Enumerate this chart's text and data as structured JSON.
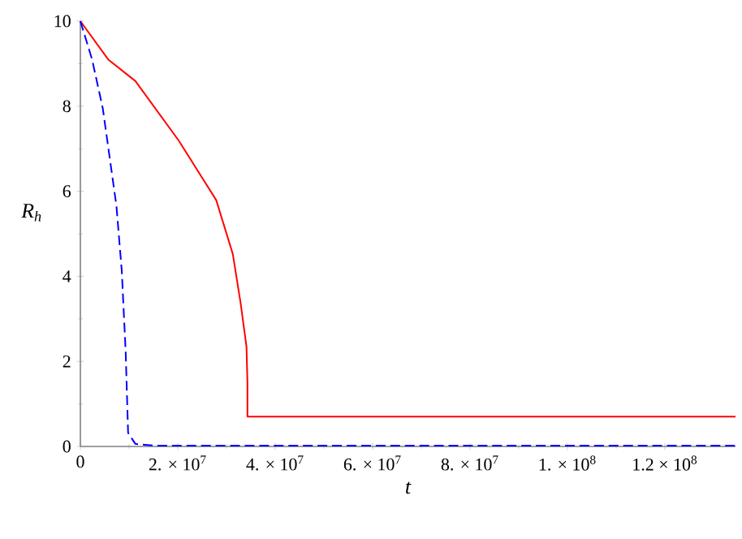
{
  "chart_data": {
    "type": "line",
    "xlabel": "t",
    "ylabel": "R$_{h}$",
    "xlim": [
      0,
      134500000
    ],
    "ylim": [
      0,
      10
    ],
    "xticks": [
      0,
      {
        "value": 20000000,
        "label": "2. × 10$^{7}$"
      },
      {
        "value": 40000000,
        "label": "4. × 10$^{7}$"
      },
      {
        "value": 60000000,
        "label": "6. × 10$^{7}$"
      },
      {
        "value": 80000000,
        "label": "8. × 10$^{7}$"
      },
      {
        "value": 100000000,
        "label": "1. × 10$^{8}$"
      },
      {
        "value": 120000000,
        "label": "1.2 × 10$^{8}$"
      }
    ],
    "yticks": [
      0,
      2,
      4,
      6,
      8,
      10
    ],
    "series": [
      {
        "color": "#ff0000",
        "line_style": "solid",
        "x": [
          0,
          5700000,
          11300000,
          20200000,
          27900000,
          31300000,
          32900000,
          34100000,
          34300000,
          34300000,
          134500000
        ],
        "values": [
          10,
          9.1,
          8.59,
          7.19,
          5.79,
          4.52,
          3.37,
          2.35,
          1.5,
          0.7,
          0.7
        ]
      },
      {
        "color": "#0000ff",
        "line_style": "dashed",
        "x": [
          0,
          2400000,
          4600000,
          7400000,
          8500000,
          9300000,
          9800000,
          11300000,
          15000000,
          134500000
        ],
        "values": [
          10,
          9.1,
          7.95,
          5.66,
          4.13,
          2.23,
          0.32,
          0.06,
          0.02,
          0.02
        ]
      }
    ]
  }
}
